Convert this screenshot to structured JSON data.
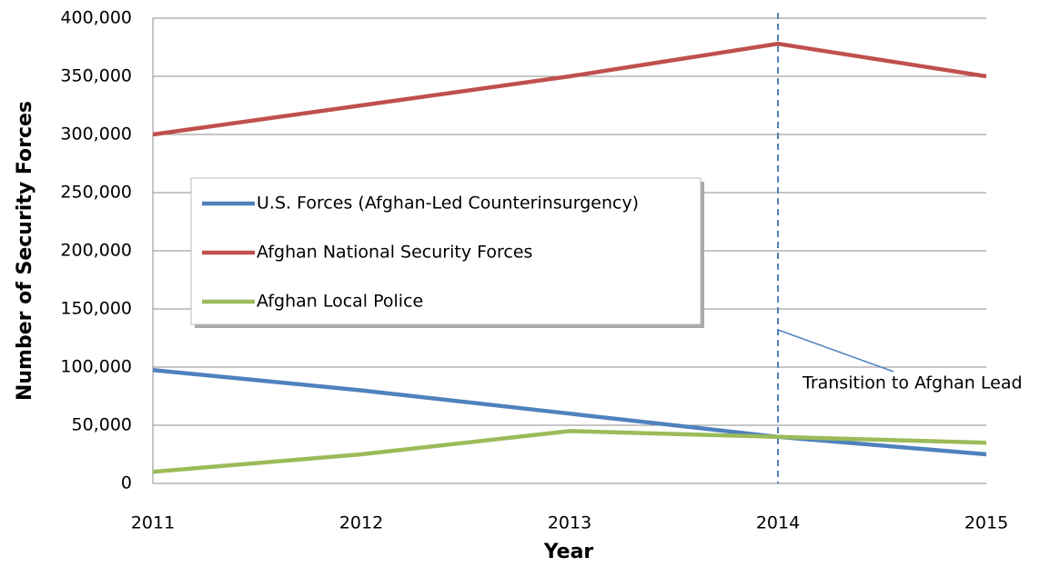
{
  "chart_data": {
    "type": "line",
    "x_label": "Year",
    "y_label": "Number of Security Forces",
    "categories": [
      "2011",
      "2012",
      "2013",
      "2014",
      "2015"
    ],
    "series": [
      {
        "name": "U.S. Forces (Afghan-Led Counterinsurgency)",
        "color": "#4f81bd",
        "values": [
          97500,
          80000,
          60000,
          40000,
          25000
        ]
      },
      {
        "name": "Afghan National Security Forces",
        "color": "#c0504d",
        "values": [
          300000,
          325000,
          350000,
          378000,
          350000
        ]
      },
      {
        "name": "Afghan Local Police",
        "color": "#9bbb59",
        "values": [
          10000,
          25000,
          45000,
          40000,
          35000
        ]
      }
    ],
    "ylim": [
      0,
      400000
    ],
    "yticks": [
      0,
      {
        "value": 50000,
        "label": "50,000"
      },
      {
        "value": 100000,
        "label": "100,000"
      },
      {
        "value": 150000,
        "label": "150,000"
      },
      {
        "value": 200000,
        "label": "200,000"
      },
      {
        "value": 250000,
        "label": "250,000"
      },
      {
        "value": 300000,
        "label": "300,000"
      },
      {
        "value": 350000,
        "label": "350,000"
      },
      {
        "value": 400000,
        "label": "400,000"
      }
    ],
    "grid": true,
    "legend_position": "center-left",
    "annotation": {
      "text": "Transition to Afghan Lead",
      "x": "2014"
    }
  }
}
